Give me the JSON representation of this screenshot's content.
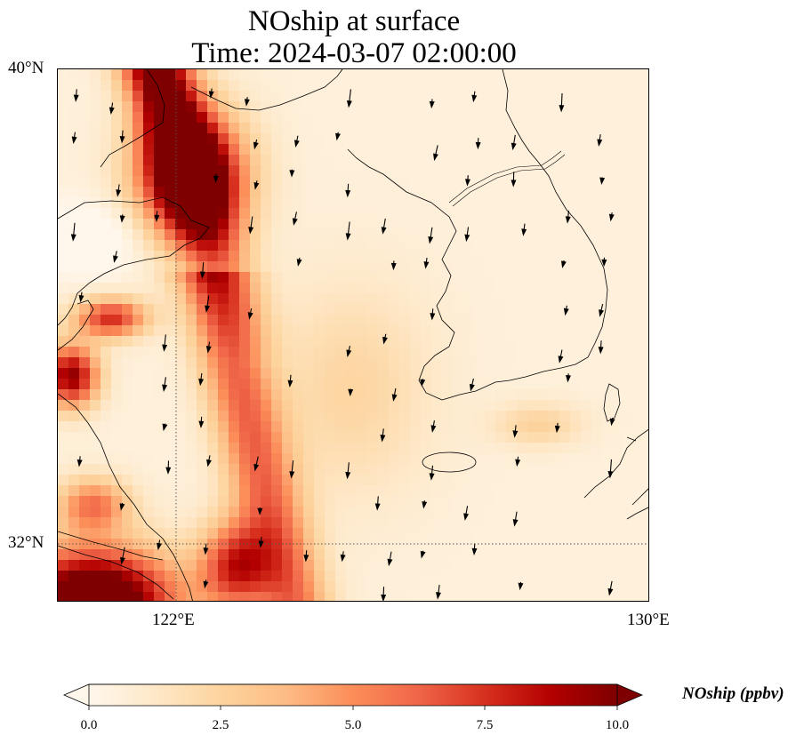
{
  "title": {
    "line1": "NOship at surface",
    "line2": "Time: 2024-03-07 02:00:00"
  },
  "map": {
    "extent": {
      "lon": [
        119.8,
        130.0
      ],
      "lat": [
        31.0,
        40.0
      ]
    },
    "variable": "NOship",
    "units": "ppbv",
    "gridlines": {
      "lon": [
        122,
        130
      ],
      "lat": [
        32,
        40
      ],
      "style": "dotted"
    },
    "colormap": "OrRd",
    "wind_vectors": true
  },
  "axes": {
    "lat_labels": [
      "40°N",
      "32°N"
    ],
    "lon_labels": [
      "122°E",
      "130°E"
    ]
  },
  "colorbar": {
    "label": "NOship (ppbv)",
    "min": 0.0,
    "max": 10.0,
    "ticks": [
      "0.0",
      "2.5",
      "5.0",
      "7.5",
      "10.0"
    ],
    "extend": "both",
    "colors": [
      "#fff7ec",
      "#fee8c8",
      "#fdd49e",
      "#fdbb84",
      "#fc8d59",
      "#ef6548",
      "#d7301f",
      "#b30000",
      "#7f0000"
    ]
  }
}
